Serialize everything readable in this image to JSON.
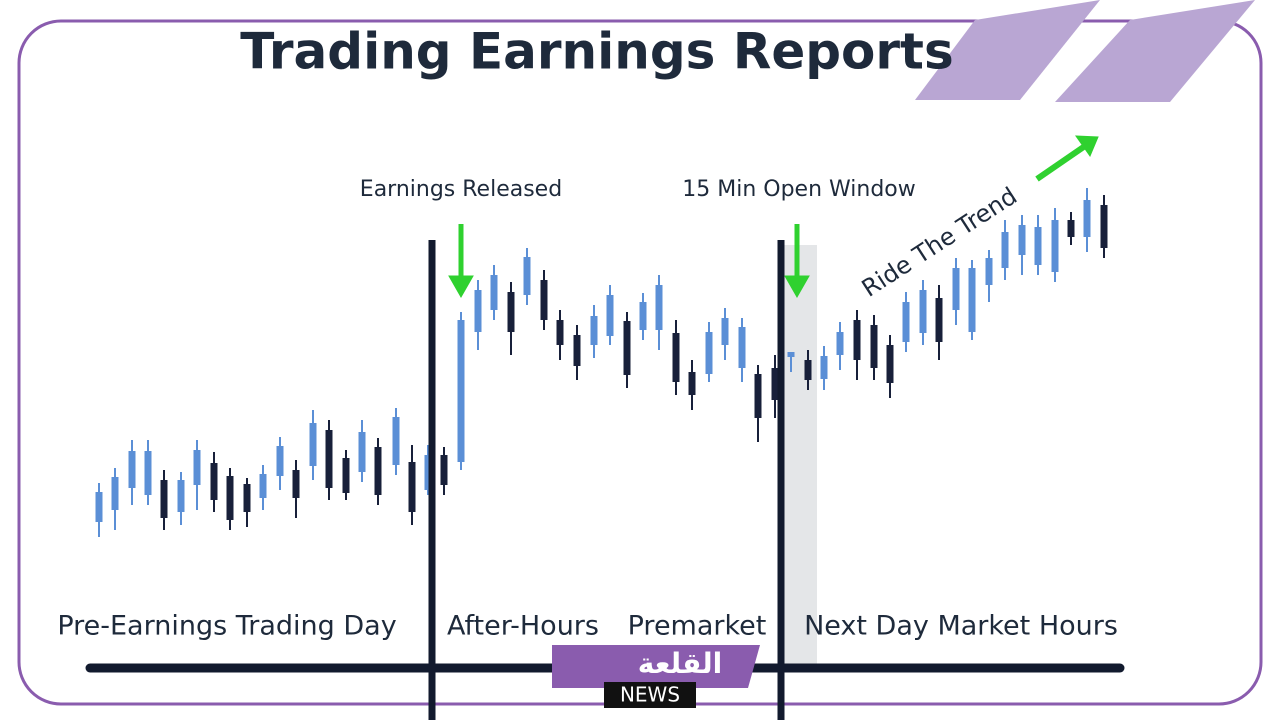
{
  "header": {
    "title": "Trading Earnings Reports"
  },
  "annotations": {
    "earnings_released": "Earnings Released",
    "open_window": "15 Min Open Window",
    "ride_trend": "Ride The Trend"
  },
  "sections": [
    "Pre-Earnings Trading Day",
    "After-Hours",
    "Premarket",
    "Next Day Market Hours"
  ],
  "watermark": {
    "brand": "القلعة",
    "news": "NEWS"
  }
}
